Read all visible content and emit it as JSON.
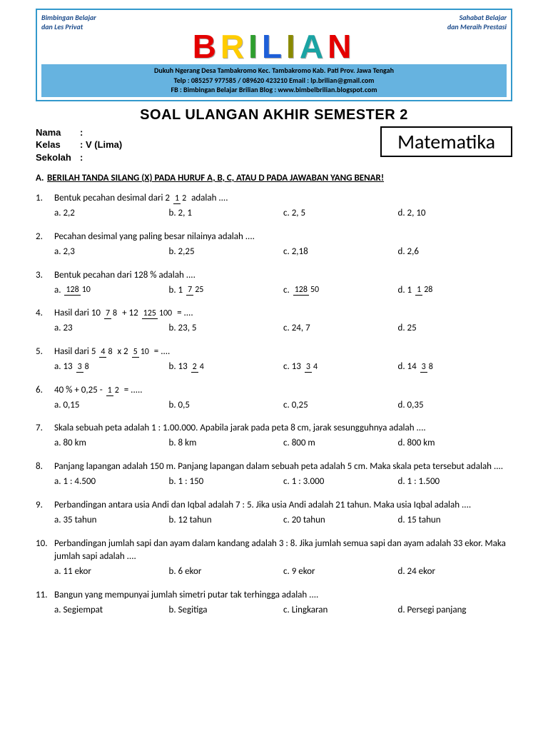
{
  "banner": {
    "left_tag1": "Bimbingan Belajar",
    "left_tag2": "dan Les Privat",
    "right_tag1": "Sahabat Belajar",
    "right_tag2": "dan Meraih Prestasi",
    "logo_letters": [
      {
        "t": "B",
        "c": "#e40000"
      },
      {
        "t": "R",
        "c": "#ffcc00"
      },
      {
        "t": "I",
        "c": "#2e9e2e"
      },
      {
        "t": "L",
        "c": "#1e5fd8"
      },
      {
        "t": "I",
        "c": "#8a8a00"
      },
      {
        "t": "A",
        "c": "#1aa3a3"
      },
      {
        "t": "N",
        "c": "#e40000"
      }
    ],
    "info1": "Dukuh Ngerang Desa Tambakromo Kec. Tambakromo Kab. Pati Prov. Jawa Tengah",
    "info2": "Telp : 085257 977585 / 089620 423210    Email : lp.brilian@gmail.com",
    "info3": "FB : Bimbingan Belajar Brilian    Blog : www.bimbelbrilian.blogspot.com"
  },
  "title": "SOAL ULANGAN AKHIR SEMESTER 2",
  "meta": {
    "nama_label": "Nama",
    "nama_value": "",
    "kelas_label": "Kelas",
    "kelas_value": "V  (Lima)",
    "sekolah_label": "Sekolah",
    "sekolah_value": ""
  },
  "subject": "Matematika",
  "section_a_letter": "A.",
  "section_a_text": "BERILAH TANDA SILANG (X) PADA HURUF A, B, C, ATAU D PADA JAWABAN YANG BENAR!",
  "questions": [
    {
      "prefix": "Bentuk pecahan desimal dari 2 ",
      "frac": {
        "n": "1",
        "d": "2"
      },
      "suffix": " adalah ....",
      "choices": [
        "a. 2,2",
        "b. 2, 1",
        "c. 2, 5",
        "d. 2, 10"
      ]
    },
    {
      "text": "Pecahan desimal yang paling besar nilainya adalah ....",
      "choices": [
        "a. 2,3",
        "b. 2,25",
        "c. 2,18",
        "d. 2,6"
      ]
    },
    {
      "text": "Bentuk pecahan dari 128 % adalah ....",
      "frac_choices": [
        {
          "lab": "a. ",
          "whole": "",
          "n": "128",
          "d": "10"
        },
        {
          "lab": "b. ",
          "whole": "1 ",
          "n": "7",
          "d": "25"
        },
        {
          "lab": "c. ",
          "whole": "",
          "n": "128",
          "d": "50"
        },
        {
          "lab": "d. ",
          "whole": "1 ",
          "n": "1",
          "d": "28"
        }
      ]
    },
    {
      "prefix": "Hasil dari 10 ",
      "frac": {
        "n": "7",
        "d": "8"
      },
      "mid": " + 12 ",
      "frac2": {
        "n": "125",
        "d": "100"
      },
      "suffix": " = ....",
      "choices": [
        "a. 23",
        "b. 23, 5",
        "c. 24, 7",
        "d. 25"
      ]
    },
    {
      "prefix": " Hasil dari 5 ",
      "frac": {
        "n": "4",
        "d": "8"
      },
      "mid": " x 2 ",
      "frac2": {
        "n": "5",
        "d": "10"
      },
      "suffix": " = ....",
      "frac_choices": [
        {
          "lab": "a. ",
          "whole": "13 ",
          "n": "3",
          "d": "8"
        },
        {
          "lab": "b. ",
          "whole": "13 ",
          "n": "2",
          "d": "4"
        },
        {
          "lab": "c. ",
          "whole": "13 ",
          "n": "3",
          "d": "4"
        },
        {
          "lab": "d. ",
          "whole": "14 ",
          "n": "3",
          "d": "8"
        }
      ]
    },
    {
      "prefix": "40 % + 0,25 - ",
      "frac": {
        "n": "1",
        "d": "2"
      },
      "suffix": " = .....",
      "choices": [
        "a. 0,15",
        "b. 0,5",
        "c. 0,25",
        "d. 0,35"
      ]
    },
    {
      "text": "Skala sebuah peta adalah 1 : 1.00.000. Apabila jarak pada peta 8 cm, jarak sesungguhnya adalah ....",
      "choices": [
        "a. 80 km",
        "b. 8 km",
        "c. 800 m",
        "d. 800 km"
      ]
    },
    {
      "text": "Panjang lapangan adalah 150 m. Panjang lapangan dalam sebuah peta adalah 5 cm. Maka skala peta tersebut adalah ....",
      "choices": [
        "a. 1 : 4.500",
        "b. 1 : 150",
        "c. 1 : 3.000",
        "d. 1 : 1.500"
      ]
    },
    {
      "text": "Perbandingan antara usia Andi dan Iqbal adalah 7 : 5. Jika usia Andi adalah 21 tahun. Maka usia Iqbal adalah ....",
      "choices": [
        "a.  35 tahun",
        "b. 12 tahun",
        "c. 20 tahun",
        "d. 15 tahun"
      ]
    },
    {
      "text": "Perbandingan jumlah sapi dan ayam dalam kandang adalah 3 : 8. Jika jumlah semua sapi dan ayam adalah 33 ekor. Maka jumlah sapi adalah ....",
      "choices": [
        "a. 11 ekor",
        "b. 6 ekor",
        "c. 9 ekor",
        "d. 24 ekor"
      ]
    },
    {
      "text": "Bangun yang mempunyai jumlah simetri putar tak terhingga adalah ....",
      "choices": [
        "a. Segiempat",
        "b. Segitiga",
        "c. Lingkaran",
        "d. Persegi panjang"
      ]
    }
  ]
}
